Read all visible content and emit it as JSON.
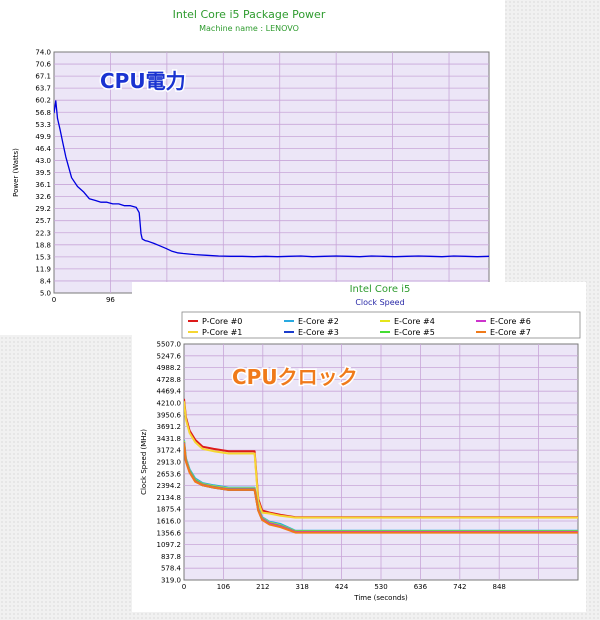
{
  "chart_data": [
    {
      "type": "line",
      "title": "Intel Core i5 Package Power",
      "subtitle": "Machine name : LENOVO",
      "overlay_label": "CPU電力",
      "xlabel": "",
      "ylabel": "Power (Watts)",
      "xlim": [
        0,
        740
      ],
      "ylim": [
        5.0,
        74.0
      ],
      "y_ticks": [
        "74.0",
        "70.6",
        "67.1",
        "63.7",
        "60.2",
        "56.8",
        "53.3",
        "49.9",
        "46.4",
        "43.0",
        "39.5",
        "36.1",
        "32.6",
        "29.2",
        "25.7",
        "22.3",
        "18.8",
        "15.3",
        "11.9",
        "8.4",
        "5.0"
      ],
      "x_ticks": [
        "0",
        "96"
      ],
      "grid": true,
      "series": [
        {
          "color": "#0000e0",
          "x": [
            0,
            3,
            6,
            10,
            15,
            20,
            25,
            30,
            40,
            50,
            60,
            70,
            80,
            90,
            100,
            110,
            120,
            130,
            140,
            145,
            148,
            150,
            155,
            160,
            170,
            180,
            190,
            200,
            210,
            220,
            240,
            260,
            280,
            300,
            320,
            340,
            360,
            380,
            400,
            420,
            440,
            460,
            480,
            500,
            520,
            540,
            560,
            580,
            600,
            620,
            640,
            660,
            680,
            700,
            720,
            740
          ],
          "y": [
            56.5,
            60.0,
            55.0,
            52.0,
            48.0,
            44.0,
            41.0,
            38.0,
            35.5,
            34.0,
            32.0,
            31.5,
            31.0,
            31.0,
            30.5,
            30.5,
            30.0,
            30.0,
            29.5,
            28.0,
            22.0,
            20.5,
            20.0,
            19.8,
            19.2,
            18.5,
            17.8,
            17.0,
            16.5,
            16.3,
            16.0,
            15.8,
            15.6,
            15.5,
            15.5,
            15.4,
            15.5,
            15.4,
            15.5,
            15.6,
            15.4,
            15.5,
            15.6,
            15.5,
            15.4,
            15.6,
            15.5,
            15.4,
            15.5,
            15.6,
            15.5,
            15.4,
            15.6,
            15.5,
            15.4,
            15.5
          ]
        }
      ]
    },
    {
      "type": "line",
      "title": "Intel Core i5",
      "subtitle": "Clock Speed",
      "overlay_label": "CPUクロック",
      "xlabel": "Time (seconds)",
      "ylabel": "Clock Speed (MHz)",
      "xlim": [
        0,
        1060
      ],
      "ylim": [
        319.0,
        5507.0
      ],
      "y_ticks": [
        "5507.0",
        "5247.6",
        "4988.2",
        "4728.8",
        "4469.4",
        "4210.0",
        "3950.6",
        "3691.2",
        "3431.8",
        "3172.4",
        "2913.0",
        "2653.6",
        "2394.2",
        "2134.8",
        "1875.4",
        "1616.0",
        "1356.6",
        "1097.2",
        "837.8",
        "578.4",
        "319.0"
      ],
      "x_ticks": [
        "0",
        "106",
        "212",
        "318",
        "424",
        "530",
        "636",
        "742",
        "848"
      ],
      "grid": true,
      "legend": [
        {
          "name": "P-Core #0",
          "color": "#dd1a1a"
        },
        {
          "name": "E-Core #2",
          "color": "#29a9e0"
        },
        {
          "name": "E-Core #4",
          "color": "#e5e51a"
        },
        {
          "name": "E-Core #6",
          "color": "#cc33cc"
        },
        {
          "name": "P-Core #1",
          "color": "#f5d632"
        },
        {
          "name": "E-Core #3",
          "color": "#1a3ccc"
        },
        {
          "name": "E-Core #5",
          "color": "#44dd33"
        },
        {
          "name": "E-Core #7",
          "color": "#f07a1a"
        }
      ],
      "series": [
        {
          "name": "P-Core #0",
          "color": "#dd1a1a",
          "x": [
            0,
            5,
            15,
            30,
            50,
            80,
            120,
            160,
            190,
            200,
            210,
            230,
            260,
            300,
            400,
            500,
            600,
            700,
            800,
            900,
            1060
          ],
          "y": [
            4300,
            3900,
            3600,
            3400,
            3250,
            3200,
            3150,
            3150,
            3150,
            2100,
            1850,
            1800,
            1750,
            1700,
            1700,
            1700,
            1700,
            1700,
            1700,
            1700,
            1700
          ]
        },
        {
          "name": "P-Core #1",
          "color": "#f5d632",
          "x": [
            0,
            5,
            15,
            30,
            50,
            80,
            120,
            160,
            190,
            200,
            210,
            230,
            260,
            300,
            400,
            500,
            600,
            700,
            800,
            900,
            1060
          ],
          "y": [
            4250,
            3850,
            3550,
            3350,
            3200,
            3150,
            3100,
            3100,
            3100,
            2050,
            1800,
            1780,
            1730,
            1690,
            1690,
            1690,
            1690,
            1690,
            1690,
            1690,
            1690
          ]
        },
        {
          "name": "E-Core #2",
          "color": "#29a9e0",
          "x": [
            0,
            5,
            15,
            30,
            50,
            80,
            120,
            160,
            190,
            200,
            210,
            230,
            260,
            300,
            400,
            500,
            600,
            700,
            800,
            900,
            1060
          ],
          "y": [
            3400,
            3000,
            2750,
            2550,
            2450,
            2400,
            2350,
            2350,
            2350,
            1900,
            1700,
            1600,
            1550,
            1400,
            1400,
            1400,
            1400,
            1400,
            1400,
            1400,
            1400
          ]
        },
        {
          "name": "E-Core #3",
          "color": "#1a3ccc",
          "x": [
            0,
            5,
            15,
            30,
            50,
            80,
            120,
            160,
            190,
            200,
            210,
            230,
            260,
            300,
            400,
            500,
            600,
            700,
            800,
            900,
            1060
          ],
          "y": [
            3350,
            2950,
            2700,
            2500,
            2400,
            2350,
            2300,
            2300,
            2300,
            1850,
            1650,
            1550,
            1500,
            1380,
            1380,
            1380,
            1380,
            1380,
            1380,
            1380,
            1380
          ]
        },
        {
          "name": "E-Core #4",
          "color": "#e5e51a",
          "x": [
            0,
            5,
            15,
            30,
            50,
            80,
            120,
            160,
            190,
            200,
            210,
            230,
            260,
            300,
            400,
            500,
            600,
            700,
            800,
            900,
            1060
          ],
          "y": [
            3380,
            2980,
            2720,
            2520,
            2430,
            2380,
            2330,
            2330,
            2330,
            1880,
            1680,
            1580,
            1520,
            1390,
            1390,
            1390,
            1390,
            1390,
            1390,
            1390,
            1390
          ]
        },
        {
          "name": "E-Core #5",
          "color": "#44dd33",
          "x": [
            0,
            5,
            15,
            30,
            50,
            80,
            120,
            160,
            190,
            200,
            210,
            230,
            260,
            300,
            400,
            500,
            600,
            700,
            800,
            900,
            1060
          ],
          "y": [
            3360,
            2960,
            2710,
            2510,
            2420,
            2370,
            2320,
            2320,
            2320,
            1870,
            1670,
            1570,
            1510,
            1385,
            1385,
            1385,
            1385,
            1385,
            1385,
            1385,
            1385
          ]
        },
        {
          "name": "E-Core #6",
          "color": "#cc33cc",
          "x": [
            0,
            5,
            15,
            30,
            50,
            80,
            120,
            160,
            190,
            200,
            210,
            230,
            260,
            300,
            400,
            500,
            600,
            700,
            800,
            900,
            1060
          ],
          "y": [
            3340,
            2940,
            2690,
            2490,
            2410,
            2360,
            2310,
            2310,
            2310,
            1860,
            1660,
            1560,
            1500,
            1375,
            1375,
            1375,
            1375,
            1375,
            1375,
            1375,
            1375
          ]
        },
        {
          "name": "E-Core #7",
          "color": "#f07a1a",
          "x": [
            0,
            5,
            15,
            30,
            50,
            80,
            120,
            160,
            190,
            200,
            210,
            230,
            260,
            300,
            400,
            500,
            600,
            700,
            800,
            900,
            1060
          ],
          "y": [
            3320,
            2920,
            2680,
            2480,
            2400,
            2350,
            2300,
            2300,
            2300,
            1840,
            1640,
            1540,
            1480,
            1360,
            1360,
            1360,
            1360,
            1360,
            1360,
            1360,
            1360
          ]
        }
      ]
    }
  ]
}
